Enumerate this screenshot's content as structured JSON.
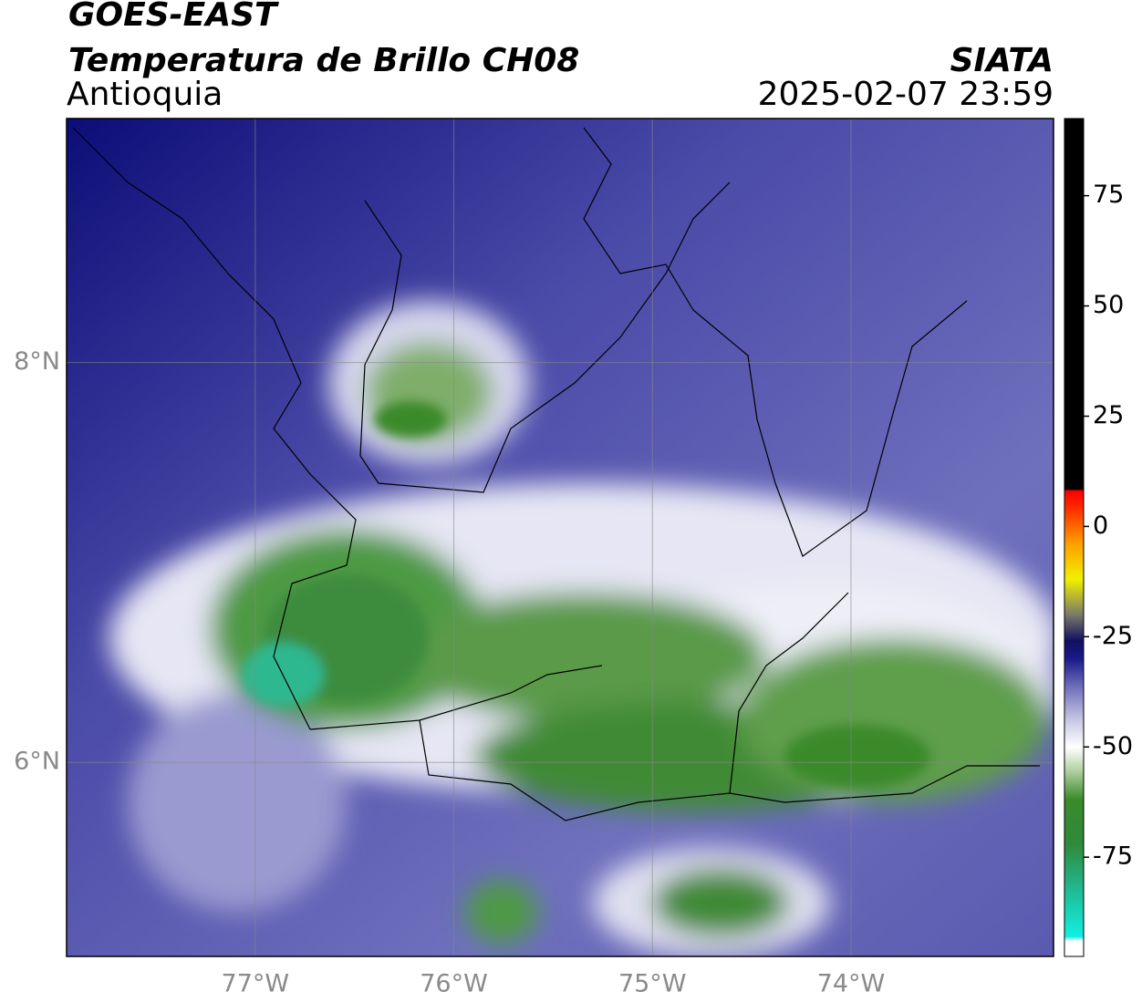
{
  "header": {
    "title": "GOES-EAST",
    "subtitle": "Temperatura de Brillo CH08",
    "region": "Antioquia",
    "source": "SIATA",
    "timestamp": "2025-02-07 23:59"
  },
  "map": {
    "xlim": [
      -77.95,
      -72.98
    ],
    "ylim": [
      5.03,
      9.22
    ],
    "xticks": [
      {
        "value": -77,
        "label": "77°W"
      },
      {
        "value": -76,
        "label": "76°W"
      },
      {
        "value": -75,
        "label": "75°W"
      },
      {
        "value": -74,
        "label": "74°W"
      }
    ],
    "yticks": [
      {
        "value": 6,
        "label": "6°N"
      },
      {
        "value": 8,
        "label": "8°N"
      }
    ],
    "grid": true
  },
  "colorbar": {
    "clim": [
      -97.5,
      92.5
    ],
    "ticks": [
      75,
      50,
      25,
      0,
      -25,
      -50,
      -75
    ],
    "stops": [
      {
        "value": -97.5,
        "color": "#ffffff"
      },
      {
        "value": -94,
        "color": "#ffffff"
      },
      {
        "value": -93,
        "color": "#10f0e0"
      },
      {
        "value": -82,
        "color": "#20b890"
      },
      {
        "value": -72,
        "color": "#2f8a3a"
      },
      {
        "value": -62,
        "color": "#3a8a2a"
      },
      {
        "value": -55,
        "color": "#b8d4a8"
      },
      {
        "value": -50,
        "color": "#ffffff"
      },
      {
        "value": -44,
        "color": "#c8c8e4"
      },
      {
        "value": -36,
        "color": "#6a6ab8"
      },
      {
        "value": -30,
        "color": "#1a1a8a"
      },
      {
        "value": -26,
        "color": "#101060"
      },
      {
        "value": -20,
        "color": "#7a7a6a"
      },
      {
        "value": -12,
        "color": "#f0f000"
      },
      {
        "value": -4,
        "color": "#ffa000"
      },
      {
        "value": 5,
        "color": "#ff2000"
      },
      {
        "value": 8,
        "color": "#ff0000"
      },
      {
        "value": 8.5,
        "color": "#000000"
      },
      {
        "value": 92.5,
        "color": "#000000"
      }
    ]
  }
}
